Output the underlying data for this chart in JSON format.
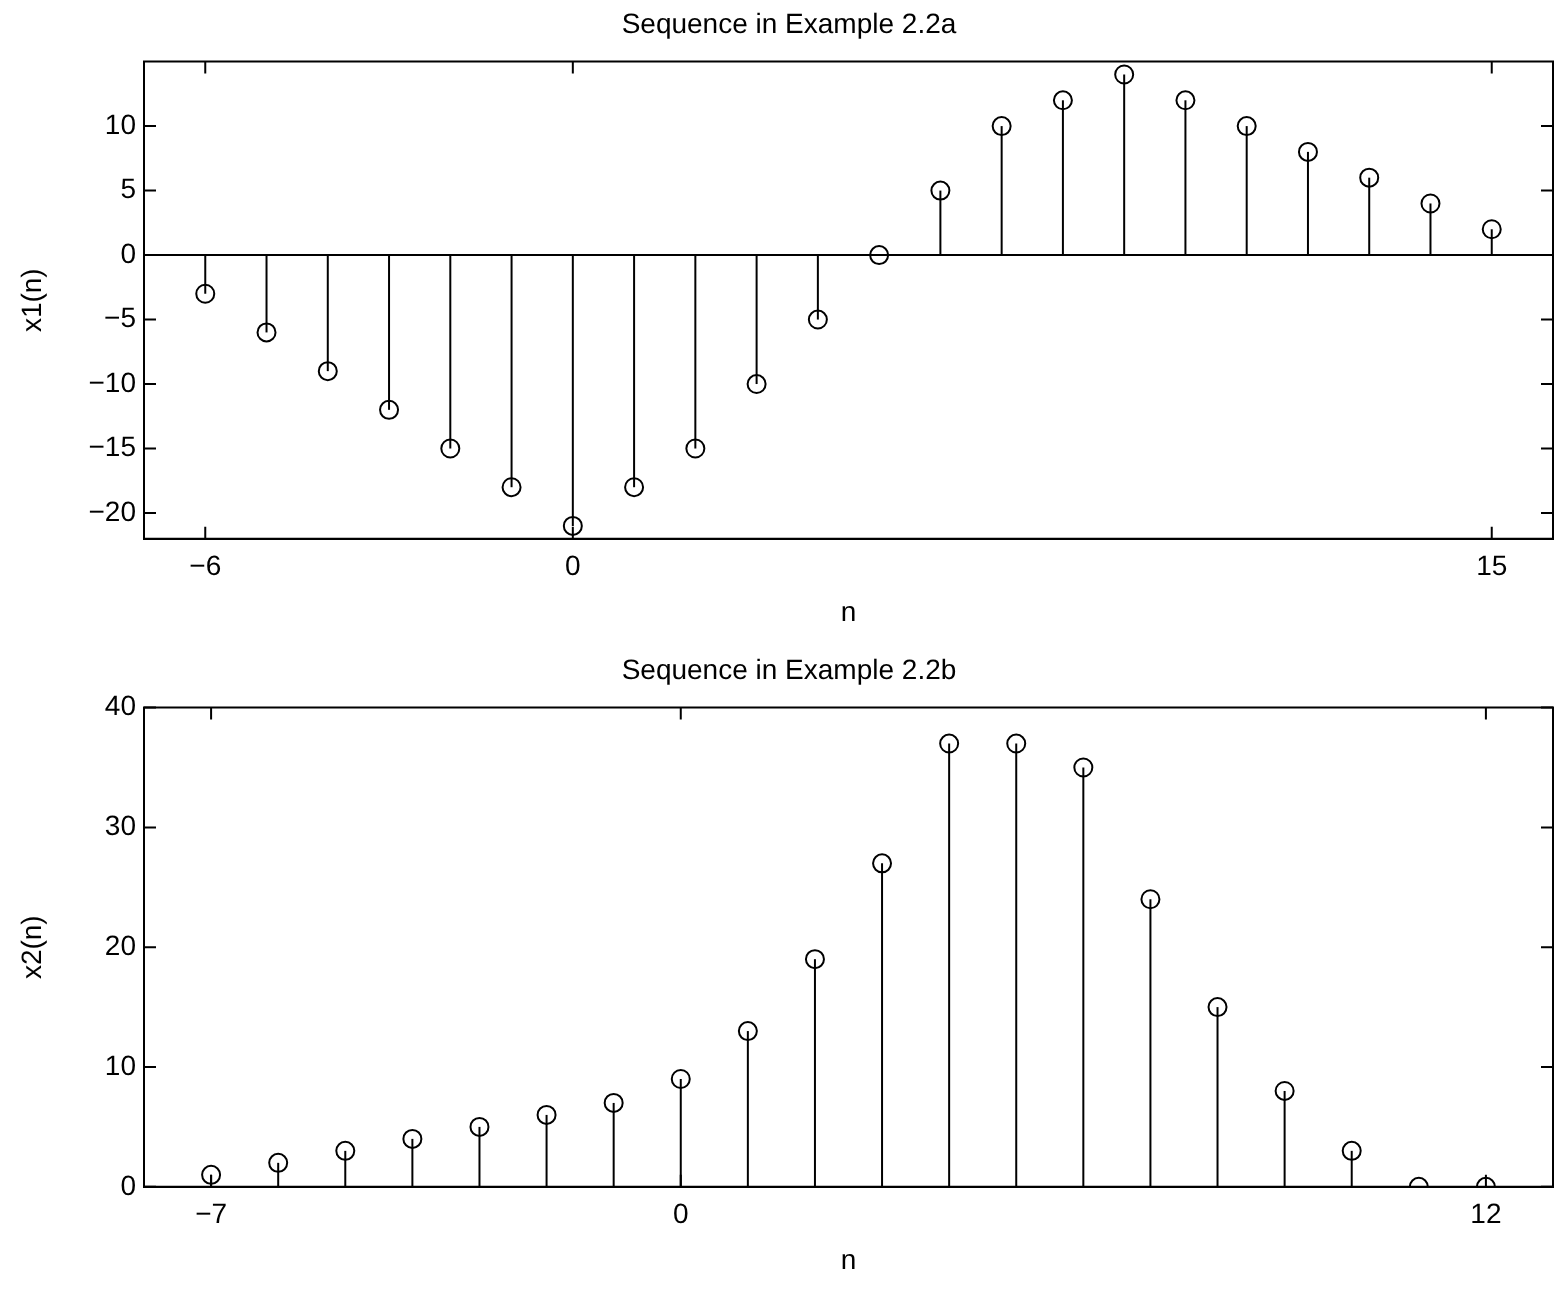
{
  "chart_data": [
    {
      "type": "lollipop",
      "title": "Sequence in Example 2.2a",
      "xlabel": "n",
      "ylabel": "x1(n)",
      "x": [
        -6,
        -5,
        -4,
        -3,
        -2,
        -1,
        0,
        1,
        2,
        3,
        4,
        5,
        6,
        7,
        8,
        9,
        10,
        11,
        12,
        13,
        14,
        15
      ],
      "series": [
        {
          "color": "#000000",
          "values": [
            -3,
            -6,
            -9,
            -12,
            -15,
            -18,
            -21,
            -18,
            -15,
            -10,
            -5,
            0,
            5,
            10,
            12,
            14,
            12,
            10,
            8,
            6,
            4,
            2
          ]
        }
      ],
      "ref_lines": [
        {
          "axis": "y",
          "value": 0,
          "color": "#000000"
        }
      ],
      "xlim": [
        -7,
        16
      ],
      "xticks": [
        -6,
        0,
        15
      ],
      "ylim": [
        -22,
        15
      ],
      "yticks": [
        -20,
        -15,
        -10,
        -5,
        0,
        5,
        10
      ],
      "marker": "circle",
      "grid": false,
      "legend": false
    },
    {
      "type": "lollipop",
      "title": "Sequence in Example 2.2b",
      "xlabel": "n",
      "ylabel": "x2(n)",
      "x": [
        -7,
        -6,
        -5,
        -4,
        -3,
        -2,
        -1,
        0,
        1,
        2,
        3,
        4,
        5,
        6,
        7,
        8,
        9,
        10,
        11,
        12
      ],
      "series": [
        {
          "color": "#000000",
          "values": [
            1,
            2,
            3,
            4,
            5,
            6,
            7,
            9,
            13,
            19,
            27,
            37,
            37,
            35,
            24,
            15,
            8,
            3,
            0,
            0
          ]
        }
      ],
      "xlim": [
        -8,
        13
      ],
      "xticks": [
        -7,
        0,
        12
      ],
      "ylim": [
        0,
        40
      ],
      "yticks": [
        0,
        10,
        20,
        30,
        40
      ],
      "marker": "circle",
      "grid": false,
      "legend": false
    }
  ]
}
